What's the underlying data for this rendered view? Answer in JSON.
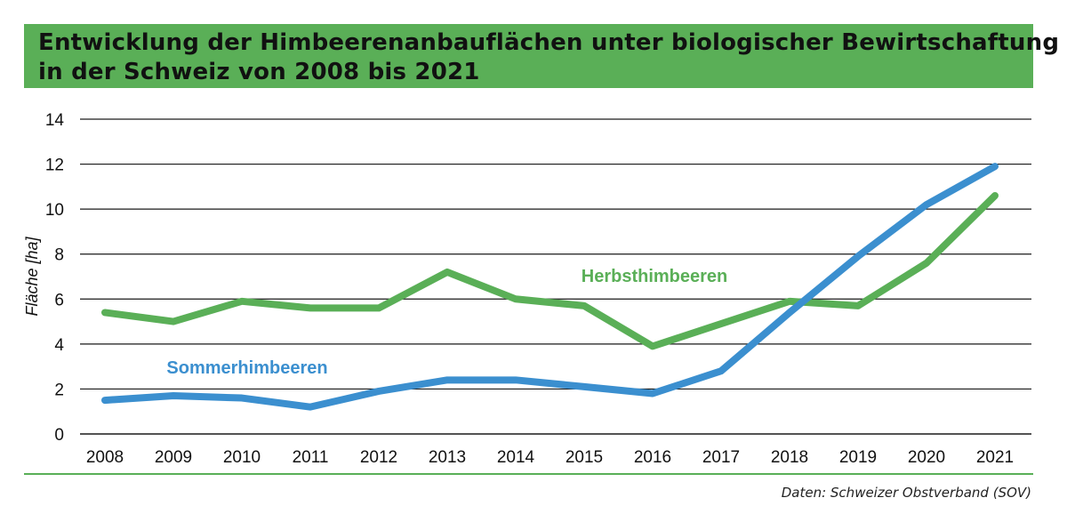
{
  "title": {
    "line1": "Entwicklung der Himbeerenanbauflächen unter biologischer Bewirtschaftung",
    "line2": "in der Schweiz von 2008 bis 2021"
  },
  "source": "Daten: Schweizer Obstverband (SOV)",
  "colors": {
    "header": "#5aaf57",
    "herbst": "#5aaf57",
    "sommer": "#3b8fcf"
  },
  "chart_data": {
    "type": "line",
    "ylabel": "Fläche [ha]",
    "xlabel": "",
    "ylim": [
      0,
      14
    ],
    "yticks": [
      0,
      2,
      4,
      6,
      8,
      10,
      12,
      14
    ],
    "grid": true,
    "x": [
      "2008",
      "2009",
      "2010",
      "2011",
      "2012",
      "2013",
      "2014",
      "2015",
      "2016",
      "2017",
      "2018",
      "2019",
      "2020",
      "2021"
    ],
    "series": [
      {
        "name": "Herbsthimbeeren",
        "color": "#5aaf57",
        "values": [
          5.4,
          5.0,
          5.9,
          5.6,
          5.6,
          7.2,
          6.0,
          5.7,
          3.9,
          4.9,
          5.9,
          5.7,
          7.6,
          10.6
        ]
      },
      {
        "name": "Sommerhimbeeren",
        "color": "#3b8fcf",
        "values": [
          1.5,
          1.7,
          1.6,
          1.2,
          1.9,
          2.4,
          2.4,
          2.1,
          1.8,
          2.8,
          5.4,
          7.9,
          10.2,
          11.9
        ]
      }
    ]
  }
}
